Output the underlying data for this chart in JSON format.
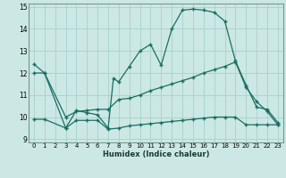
{
  "xlabel": "Humidex (Indice chaleur)",
  "bg_color": "#cce8e4",
  "grid_color": "#aad4ce",
  "line_color": "#1a6e64",
  "xlim": [
    -0.5,
    23.5
  ],
  "ylim": [
    8.85,
    15.15
  ],
  "yticks": [
    9,
    10,
    11,
    12,
    13,
    14,
    15
  ],
  "xticks": [
    0,
    1,
    2,
    3,
    4,
    5,
    6,
    7,
    8,
    9,
    10,
    11,
    12,
    13,
    14,
    15,
    16,
    17,
    18,
    19,
    20,
    21,
    22,
    23
  ],
  "line1_x": [
    0,
    1,
    3,
    4,
    5,
    6,
    7,
    7.5,
    8,
    9,
    10,
    11,
    12,
    13,
    14,
    15,
    16,
    17,
    18,
    19,
    20,
    21,
    22,
    23
  ],
  "line1_y": [
    12.4,
    12.0,
    9.5,
    10.3,
    10.2,
    10.1,
    9.5,
    11.75,
    11.6,
    12.3,
    13.0,
    13.3,
    12.35,
    14.0,
    14.85,
    14.9,
    14.85,
    14.75,
    14.35,
    12.55,
    11.45,
    10.45,
    10.35,
    9.75
  ],
  "line2_x": [
    0,
    1,
    3,
    4,
    5,
    6,
    7,
    8,
    9,
    10,
    11,
    12,
    13,
    14,
    15,
    16,
    17,
    18,
    19,
    20,
    21,
    22,
    23
  ],
  "line2_y": [
    12.0,
    12.0,
    10.0,
    10.25,
    10.3,
    10.35,
    10.35,
    10.8,
    10.85,
    11.0,
    11.2,
    11.35,
    11.5,
    11.65,
    11.8,
    12.0,
    12.15,
    12.3,
    12.5,
    11.35,
    10.7,
    10.25,
    9.65
  ],
  "line3_x": [
    0,
    1,
    3,
    4,
    5,
    6,
    7,
    8,
    9,
    10,
    11,
    12,
    13,
    14,
    15,
    16,
    17,
    18,
    19,
    20,
    21,
    22,
    23
  ],
  "line3_y": [
    9.9,
    9.9,
    9.5,
    9.85,
    9.85,
    9.85,
    9.45,
    9.5,
    9.6,
    9.65,
    9.7,
    9.75,
    9.8,
    9.85,
    9.9,
    9.95,
    10.0,
    10.0,
    10.0,
    9.65,
    9.65,
    9.65,
    9.65
  ]
}
